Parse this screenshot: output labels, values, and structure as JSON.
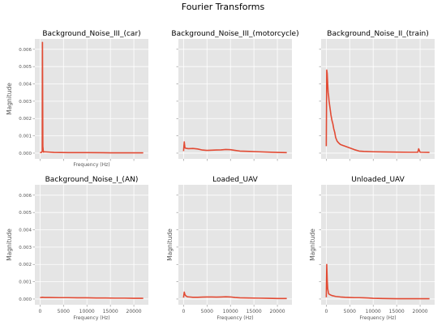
{
  "title": "Fourier Transforms",
  "colors": {
    "panel_bg": "#e5e5e5",
    "grid": "#ffffff",
    "series": "#e24a33",
    "tick": "#555555"
  },
  "chart_data": [
    {
      "type": "line",
      "title": "Background_Noise_III_(car)",
      "xlabel": "Frequency (Hz)",
      "ylabel": "Magnitude",
      "xlim": [
        -1100,
        23100
      ],
      "ylim": [
        -0.00033,
        0.0066
      ],
      "yticks": [
        "0.000",
        "0.001",
        "0.002",
        "0.003",
        "0.004",
        "0.005",
        "0.006"
      ],
      "xticks": [],
      "show_yticks": true,
      "show_xticks": false,
      "grid": true,
      "series": [
        {
          "x": [
            0,
            300,
            480,
            520,
            600,
            680,
            720,
            900,
            3000,
            6000,
            10000,
            15000,
            20000,
            22000
          ],
          "y": [
            3e-05,
            4e-05,
            0.00012,
            0.0064,
            0.0004,
            0.00015,
            6e-05,
            8e-05,
            4e-05,
            3e-05,
            3e-05,
            2e-05,
            2e-05,
            2e-05
          ]
        }
      ]
    },
    {
      "type": "line",
      "title": "Background_Noise_III_(motorcycle)",
      "xlabel": "",
      "ylabel": "",
      "xlim": [
        -1100,
        23100
      ],
      "ylim": [
        -0.00033,
        0.0066
      ],
      "yticks": [],
      "xticks": [],
      "show_yticks": false,
      "show_xticks": false,
      "grid": true,
      "series": [
        {
          "x": [
            0,
            150,
            300,
            500,
            1000,
            2000,
            3000,
            4000,
            5000,
            6000,
            7000,
            8000,
            9000,
            10000,
            11000,
            12000,
            14000,
            16000,
            18000,
            20000,
            22000
          ],
          "y": [
            0.00012,
            0.00065,
            0.0003,
            0.00028,
            0.00026,
            0.00027,
            0.00024,
            0.00018,
            0.00016,
            0.00017,
            0.00018,
            0.00019,
            0.00021,
            0.0002,
            0.00016,
            0.00012,
            0.0001,
            8e-05,
            6e-05,
            4e-05,
            3e-05
          ]
        }
      ]
    },
    {
      "type": "line",
      "title": "Background_Noise_II_(train)",
      "xlabel": "",
      "ylabel": "",
      "xlim": [
        -1100,
        23100
      ],
      "ylim": [
        -0.00033,
        0.0066
      ],
      "yticks": [],
      "xticks": [],
      "show_yticks": false,
      "show_xticks": false,
      "grid": true,
      "series": [
        {
          "x": [
            0,
            100,
            200,
            300,
            400,
            500,
            600,
            800,
            1000,
            1200,
            1400,
            1600,
            1800,
            2000,
            2300,
            2600,
            3000,
            3500,
            4000,
            5000,
            6000,
            7000,
            8000,
            10000,
            12000,
            15000,
            18000,
            19500,
            19700,
            20000,
            22000
          ],
          "y": [
            0.0004,
            0.0048,
            0.0046,
            0.004,
            0.0035,
            0.0033,
            0.003,
            0.0026,
            0.0022,
            0.0019,
            0.0017,
            0.0014,
            0.0012,
            0.0009,
            0.0007,
            0.0006,
            0.0005,
            0.00045,
            0.0004,
            0.0003,
            0.0002,
            0.00012,
            0.0001,
            8e-05,
            7e-05,
            6e-05,
            5e-05,
            5e-05,
            0.00025,
            5e-05,
            4e-05
          ]
        }
      ]
    },
    {
      "type": "line",
      "title": "Background_Noise_I_(AN)",
      "xlabel": "Frequency (Hz)",
      "ylabel": "Magnitude",
      "xlim": [
        -1100,
        23100
      ],
      "ylim": [
        -0.00033,
        0.0066
      ],
      "yticks": [
        "0.000",
        "0.001",
        "0.002",
        "0.003",
        "0.004",
        "0.005",
        "0.006"
      ],
      "xticks": [
        "0",
        "5000",
        "10000",
        "15000",
        "20000"
      ],
      "show_yticks": true,
      "show_xticks": true,
      "grid": true,
      "series": [
        {
          "x": [
            0,
            500,
            1000,
            2000,
            4000,
            6000,
            8000,
            10000,
            12000,
            14000,
            16000,
            18000,
            20000,
            22000
          ],
          "y": [
            8e-05,
            0.0001,
            9e-05,
            9e-05,
            8e-05,
            8e-05,
            7e-05,
            7e-05,
            6e-05,
            6e-05,
            5e-05,
            5e-05,
            4e-05,
            4e-05
          ]
        }
      ]
    },
    {
      "type": "line",
      "title": "Loaded_UAV",
      "xlabel": "Frequency (Hz)",
      "ylabel": "Magnitude",
      "xlim": [
        -1100,
        23100
      ],
      "ylim": [
        -0.00033,
        0.0066
      ],
      "yticks": [],
      "xticks": [
        "0",
        "5000",
        "10000",
        "15000",
        "20000"
      ],
      "show_yticks": false,
      "show_xticks": true,
      "grid": true,
      "series": [
        {
          "x": [
            0,
            150,
            300,
            500,
            800,
            1200,
            2000,
            3000,
            4000,
            5000,
            6000,
            7000,
            8000,
            9000,
            10000,
            11000,
            12000,
            14000,
            16000,
            18000,
            20000,
            22000
          ],
          "y": [
            8e-05,
            0.0004,
            0.00025,
            0.00018,
            0.00013,
            0.00012,
            0.0001,
            0.0001,
            0.00011,
            0.00012,
            0.00012,
            0.00011,
            0.00012,
            0.00013,
            0.00012,
            9e-05,
            7e-05,
            6e-05,
            5e-05,
            4e-05,
            3e-05,
            3e-05
          ]
        }
      ]
    },
    {
      "type": "line",
      "title": "Unloaded_UAV",
      "xlabel": "Frequency (Hz)",
      "ylabel": "Magnitude",
      "xlim": [
        -1100,
        23100
      ],
      "ylim": [
        -0.00033,
        0.0066
      ],
      "yticks": [],
      "xticks": [
        "0",
        "5000",
        "10000",
        "15000",
        "20000"
      ],
      "show_yticks": false,
      "show_xticks": true,
      "grid": true,
      "series": [
        {
          "x": [
            0,
            100,
            200,
            300,
            500,
            800,
            1200,
            2000,
            3000,
            4000,
            5000,
            6000,
            7000,
            8000,
            9000,
            10000,
            12000,
            15000,
            18000,
            22000
          ],
          "y": [
            0.0001,
            0.002,
            0.0011,
            0.0006,
            0.0003,
            0.00025,
            0.0002,
            0.00015,
            0.00012,
            0.0001,
            9e-05,
            8e-05,
            8e-05,
            7e-05,
            6e-05,
            4e-05,
            3e-05,
            2e-05,
            2e-05,
            2e-05
          ]
        }
      ]
    }
  ]
}
